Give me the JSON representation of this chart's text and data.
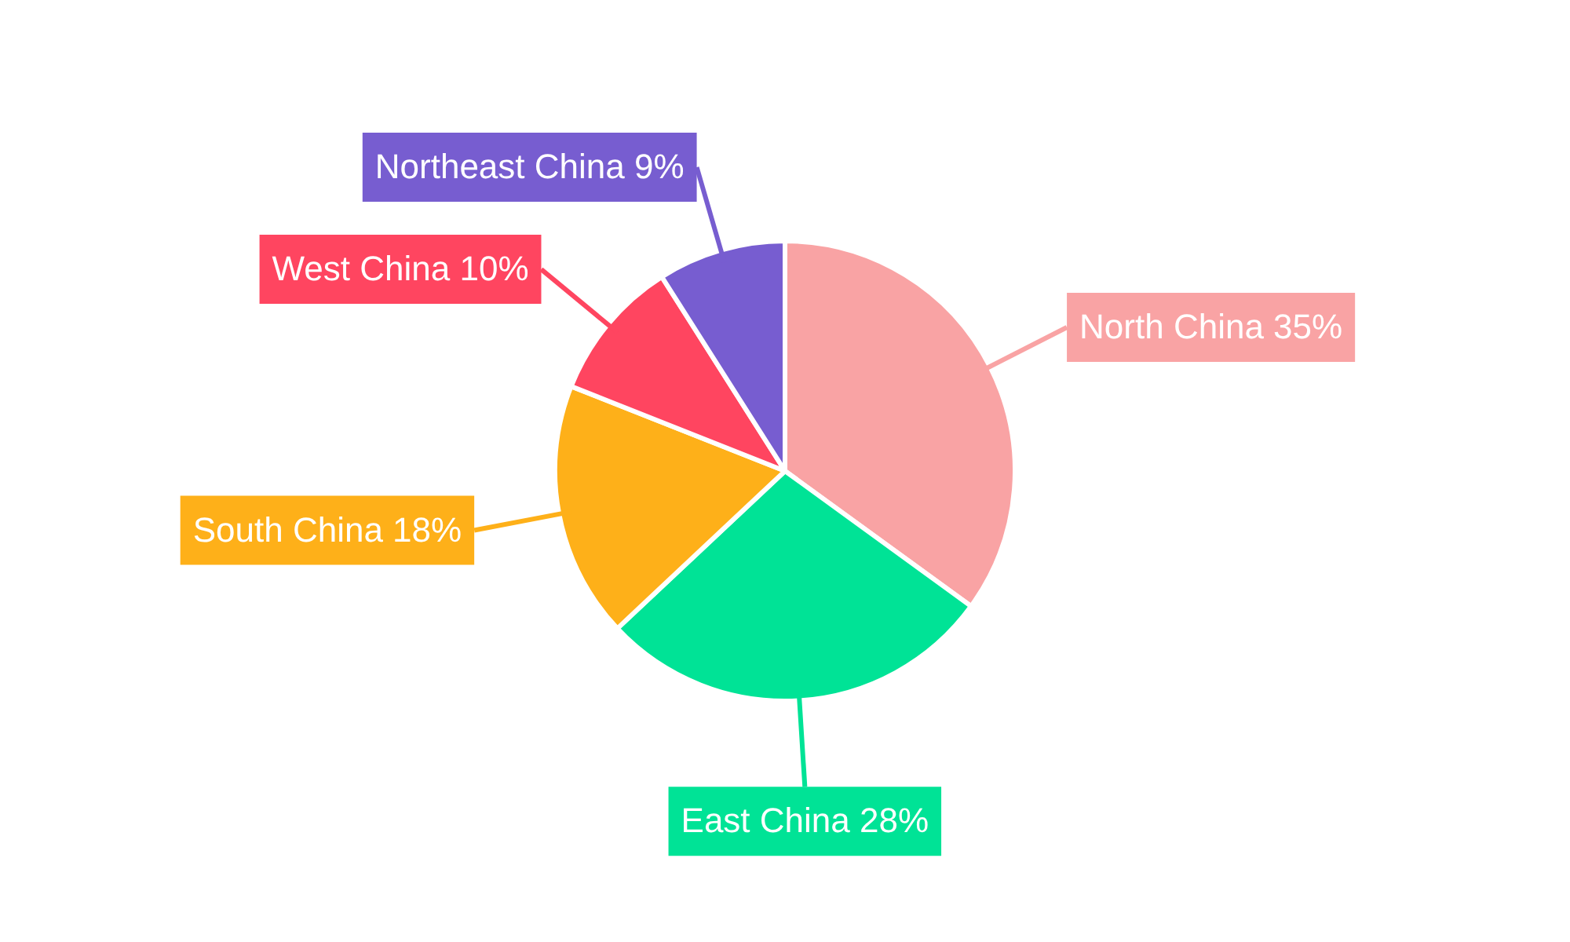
{
  "chart_data": {
    "type": "pie",
    "categories": [
      "North China",
      "East China",
      "South China",
      "West China",
      "Northeast China"
    ],
    "values": [
      35,
      28,
      18,
      10,
      9
    ],
    "value_labels": [
      "35%",
      "28%",
      "18%",
      "10%",
      "9%"
    ],
    "colors": [
      "#f9a3a4",
      "#00e396",
      "#feb019",
      "#ff4560",
      "#775dd0"
    ]
  }
}
